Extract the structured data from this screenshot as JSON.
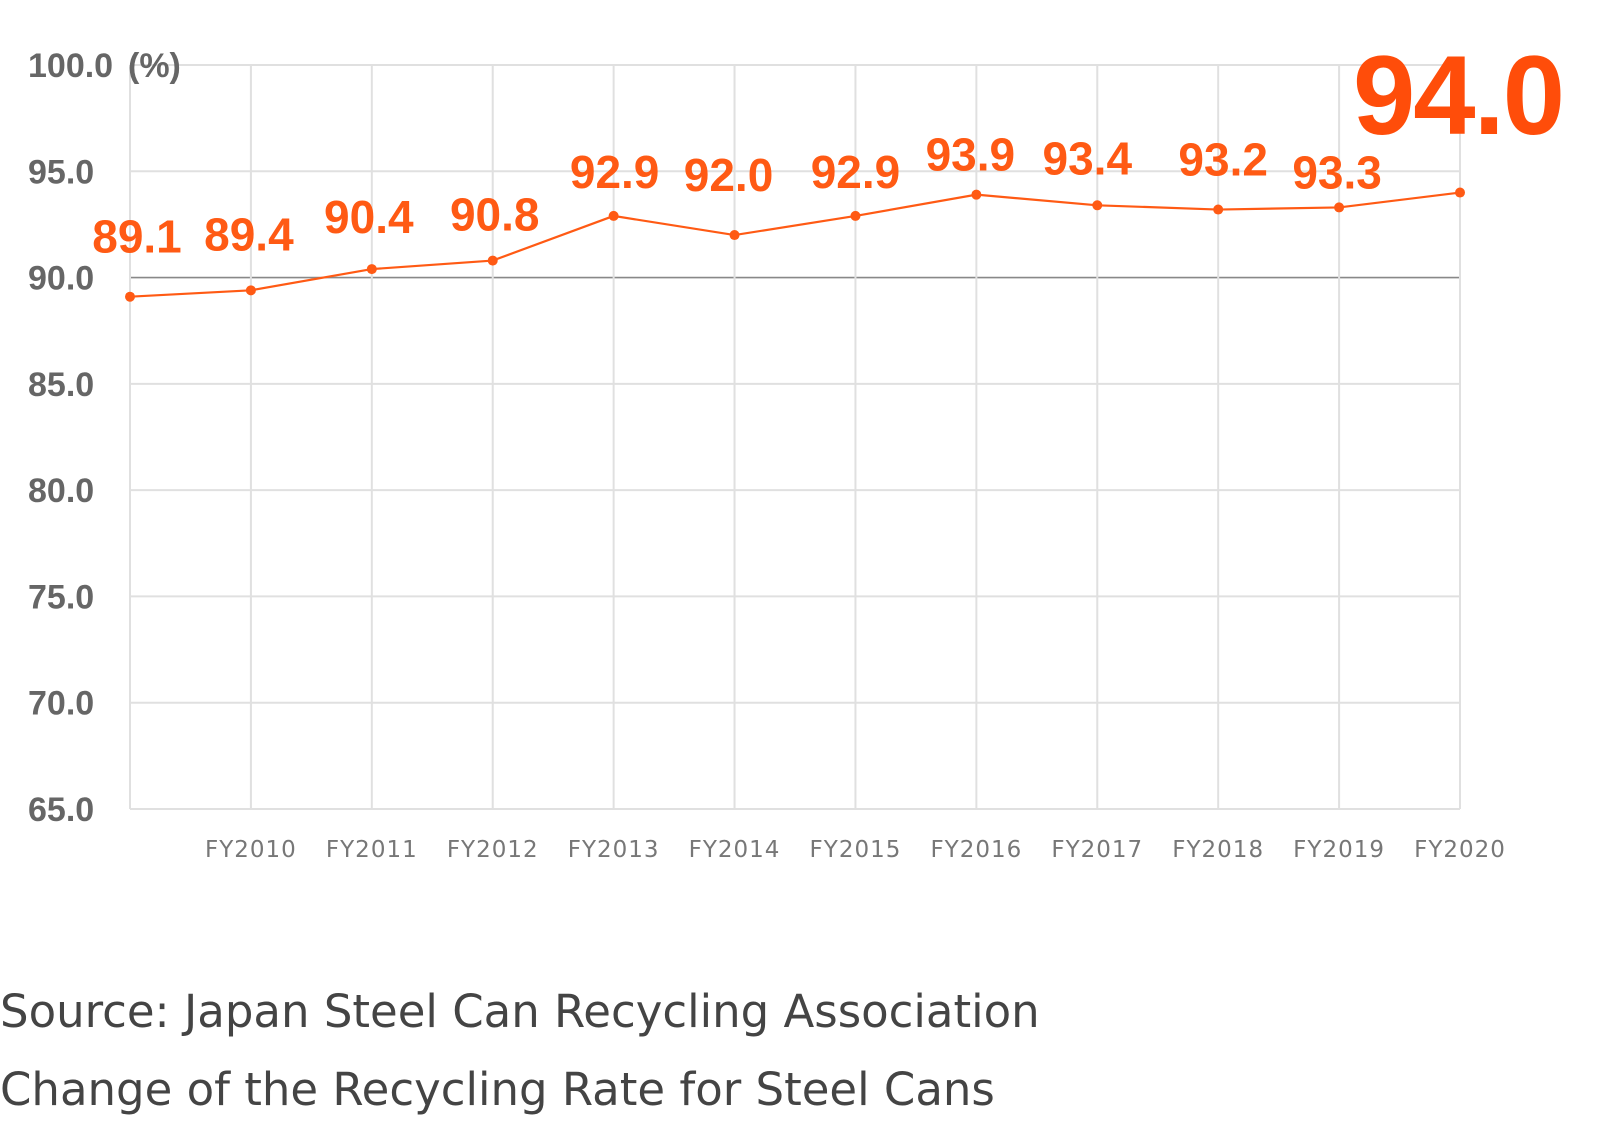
{
  "chart_data": {
    "type": "line",
    "title": "Change of the Recycling Rate for Steel Cans",
    "source": "Source: Japan Steel Can Recycling Association",
    "ylabel": "(%)",
    "ylim": [
      65.0,
      100.0
    ],
    "y_ticks": [
      "100.0",
      "95.0",
      "90.0",
      "85.0",
      "80.0",
      "75.0",
      "70.0",
      "65.0"
    ],
    "y_tick_values": [
      100,
      95,
      90,
      85,
      80,
      75,
      70,
      65
    ],
    "categories": [
      "",
      "FY2010",
      "FY2011",
      "FY2012",
      "FY2013",
      "FY2014",
      "FY2015",
      "FY2016",
      "FY2017",
      "FY2018",
      "FY2019",
      "FY2020"
    ],
    "values": [
      89.1,
      89.4,
      90.4,
      90.8,
      92.9,
      92.0,
      92.9,
      93.9,
      93.4,
      93.2,
      93.3,
      94.0
    ],
    "labels": [
      "89.1",
      "89.4",
      "90.4",
      "90.8",
      "92.9",
      "92.0",
      "92.9",
      "93.9",
      "93.4",
      "93.2",
      "93.3",
      "94.0"
    ],
    "highlight_last": true,
    "grid": true,
    "reference_line": 90.0,
    "colors": {
      "series": "#ff5a14",
      "highlight": "#ff4d0a",
      "grid": "#e0e0e0",
      "reference": "#888888",
      "axis_text": "#666666"
    }
  },
  "caption": {
    "source": "Source: Japan Steel Can Recycling Association",
    "title": "Change of the Recycling Rate for Steel Cans"
  }
}
